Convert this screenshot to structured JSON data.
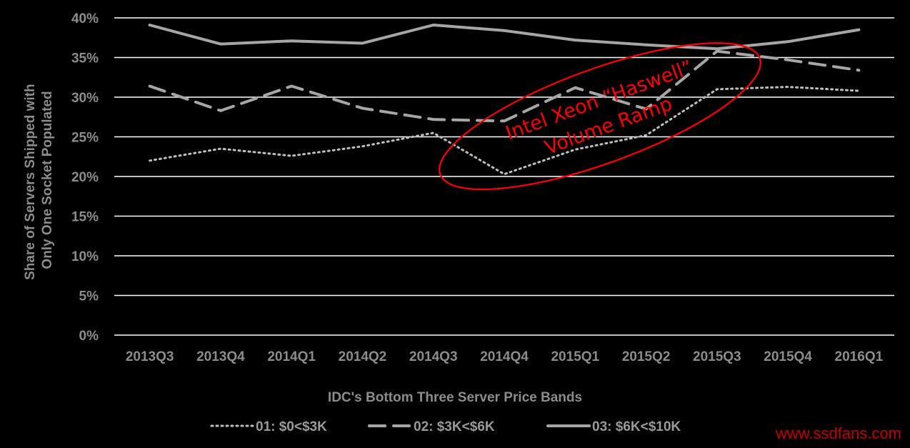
{
  "chart_data": {
    "type": "line",
    "categories": [
      "2013Q3",
      "2013Q4",
      "2014Q1",
      "2014Q2",
      "2014Q3",
      "2014Q4",
      "2015Q1",
      "2015Q2",
      "2015Q3",
      "2015Q4",
      "2016Q1"
    ],
    "series": [
      {
        "name": "01: $0<$3K",
        "style": "dotted",
        "color": "#bfbfbf",
        "values": [
          22.0,
          23.5,
          22.6,
          23.8,
          25.5,
          20.3,
          23.4,
          25.2,
          31.0,
          31.3,
          30.8
        ]
      },
      {
        "name": "02: $3K<$6K",
        "style": "dashed",
        "color": "#a6a6a6",
        "values": [
          31.4,
          28.3,
          31.4,
          28.6,
          27.2,
          27.0,
          31.2,
          28.5,
          35.8,
          34.7,
          33.4
        ]
      },
      {
        "name": "03: $6K<$10K",
        "style": "solid",
        "color": "#a6a6a6",
        "values": [
          39.1,
          36.7,
          37.1,
          36.8,
          39.1,
          38.4,
          37.2,
          36.6,
          36.1,
          37.0,
          38.5
        ]
      }
    ],
    "xlabel": "IDC's Bottom Three Server Price Bands",
    "ylabel_lines": [
      "Share of Servers Shipped with",
      "Only One Socket Populated"
    ],
    "ylim": [
      0,
      40
    ],
    "yticks": [
      0,
      5,
      10,
      15,
      20,
      25,
      30,
      35,
      40
    ],
    "ytick_labels": [
      "0%",
      "5%",
      "10%",
      "15%",
      "20%",
      "25%",
      "30%",
      "35%",
      "40%"
    ],
    "grid": true,
    "legend_position": "bottom",
    "annotation": {
      "lines": [
        "Intel Xeon “Haswell”",
        "Volume Ramp"
      ],
      "color": "#ff0000",
      "from_category": "2014Q3",
      "to_category": "2015Q4",
      "shape": "ellipse"
    }
  },
  "watermark": "www.ssdfans.com"
}
